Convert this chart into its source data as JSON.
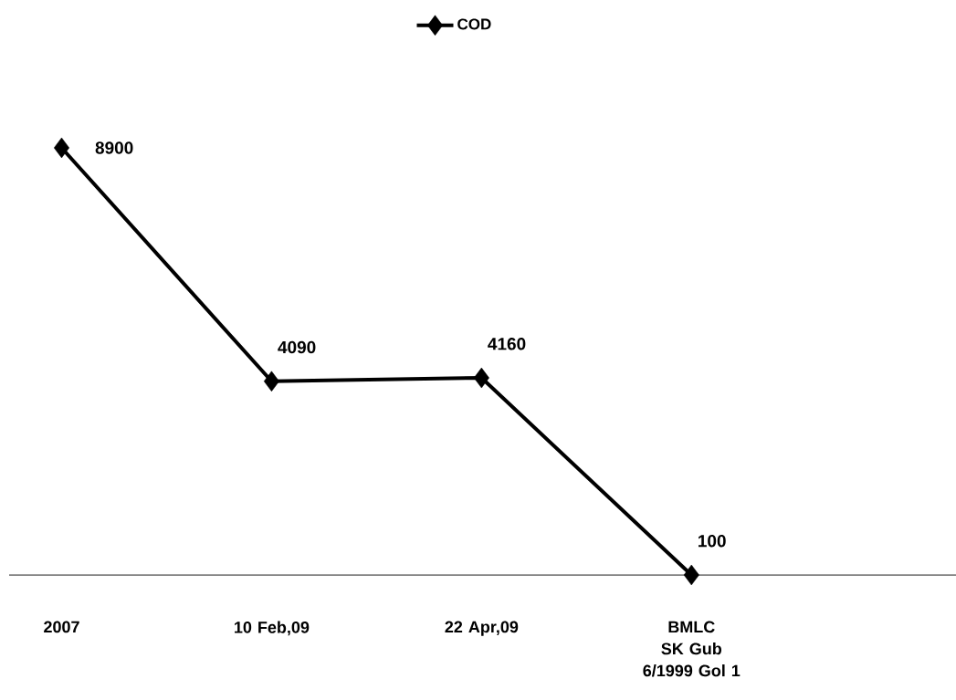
{
  "chart_data": {
    "type": "line",
    "categories": [
      "2007",
      "10 Feb,09",
      "22 Apr,09",
      "BMLC SK Gub 6/1999 Gol 1"
    ],
    "series": [
      {
        "name": "COD",
        "color": "#000000",
        "values": [
          8900,
          4090,
          4160,
          100
        ]
      }
    ],
    "data_labels": true,
    "legend": "top",
    "marker": "diamond",
    "line_style": "solid"
  }
}
